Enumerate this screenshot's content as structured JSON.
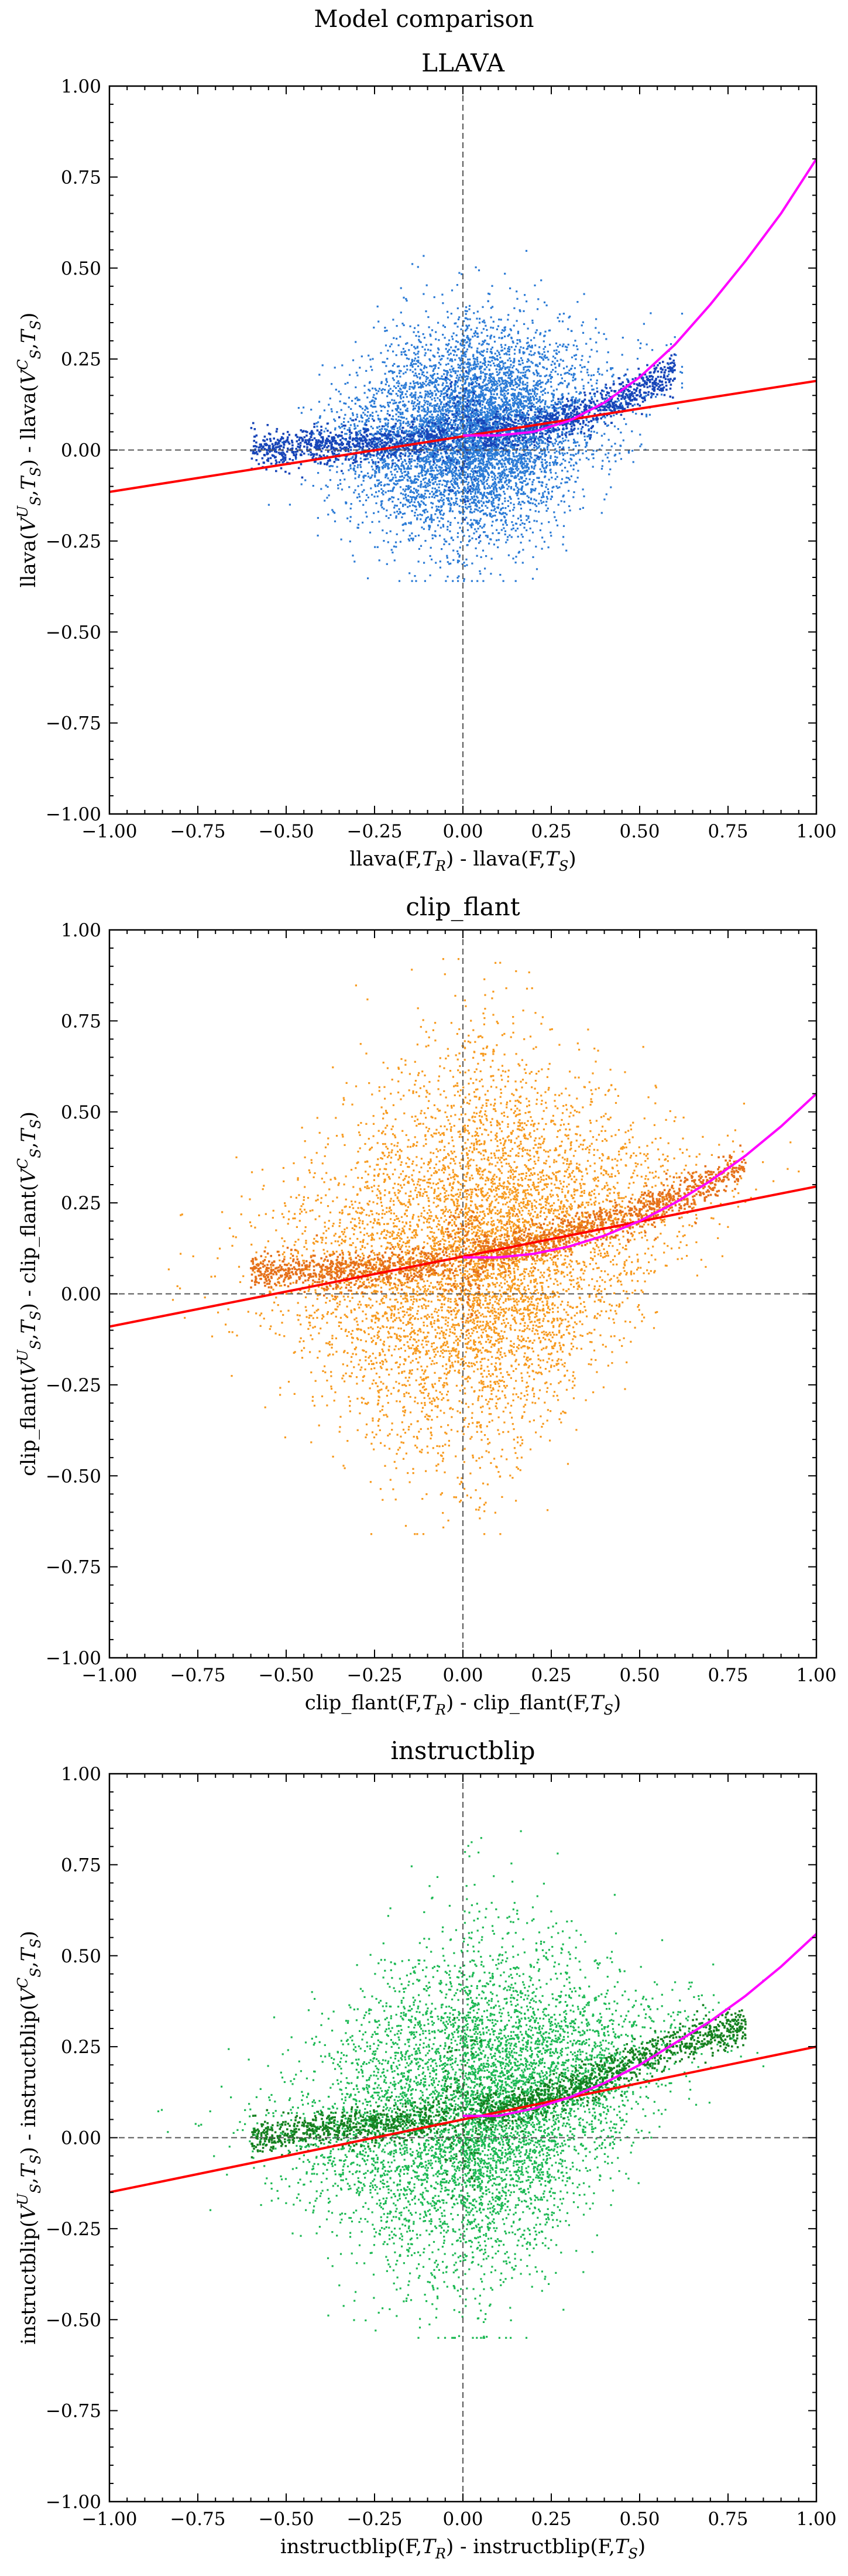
{
  "figure_title": "Model comparison",
  "chart_data": [
    {
      "type": "scatter",
      "title": "LLAVA",
      "xlabel": "llava(F,T_R) - llava(F,T_S)",
      "ylabel": "llava(V_S^U,T_S) - llava(V_S^C,T_S)",
      "xlim": [
        -1.0,
        1.0
      ],
      "ylim": [
        -1.0,
        1.0
      ],
      "xticks": [
        -1.0,
        -0.75,
        -0.5,
        -0.25,
        0.0,
        0.25,
        0.5,
        0.75,
        1.0
      ],
      "yticks": [
        -1.0,
        -0.75,
        -0.5,
        -0.25,
        0.0,
        0.25,
        0.5,
        0.75,
        1.0
      ],
      "xtick_labels": [
        "−1.00",
        "−0.75",
        "−0.50",
        "−0.25",
        "0.00",
        "0.25",
        "0.50",
        "0.75",
        "1.00"
      ],
      "ytick_labels": [
        "−1.00",
        "−0.75",
        "−0.50",
        "−0.25",
        "0.00",
        "0.25",
        "0.50",
        "0.75",
        "1.00"
      ],
      "colors": {
        "points": "#2b7bd6",
        "running_mean": "#1745b8",
        "linear_fit": "#ff0000",
        "poly_fit": "#ff00ff",
        "reference": "#555555"
      },
      "reference_lines": {
        "x": 0.0,
        "y": 0.0
      },
      "scatter_summary": {
        "x_range": [
          -0.6,
          0.62
        ],
        "y_range": [
          -0.36,
          0.62
        ],
        "x_spread": 0.2,
        "y_spread": 0.11
      },
      "running_mean": {
        "x": [
          -0.6,
          -0.4,
          -0.2,
          0.0,
          0.2,
          0.4,
          0.6
        ],
        "y": [
          0.0,
          0.01,
          0.02,
          0.04,
          0.06,
          0.12,
          0.22
        ]
      },
      "linear_fit": {
        "x": [
          -1.0,
          1.0
        ],
        "y": [
          -0.115,
          0.19
        ]
      },
      "poly_fit": {
        "x": [
          0.0,
          0.1,
          0.2,
          0.3,
          0.4,
          0.5,
          0.6,
          0.7,
          0.8,
          0.9,
          1.0
        ],
        "y": [
          0.04,
          0.04,
          0.05,
          0.08,
          0.13,
          0.2,
          0.29,
          0.4,
          0.52,
          0.65,
          0.8
        ]
      }
    },
    {
      "type": "scatter",
      "title": "clip_flant",
      "xlabel": "clip_flant(F,T_R) - clip_flant(F,T_S)",
      "ylabel": "clip_flant(V_S^U,T_S) - clip_flant(V_S^C,T_S)",
      "xlim": [
        -1.0,
        1.0
      ],
      "ylim": [
        -1.0,
        1.0
      ],
      "xticks": [
        -1.0,
        -0.75,
        -0.5,
        -0.25,
        0.0,
        0.25,
        0.5,
        0.75,
        1.0
      ],
      "yticks": [
        -1.0,
        -0.75,
        -0.5,
        -0.25,
        0.0,
        0.25,
        0.5,
        0.75,
        1.0
      ],
      "xtick_labels": [
        "−1.00",
        "−0.75",
        "−0.50",
        "−0.25",
        "0.00",
        "0.25",
        "0.50",
        "0.75",
        "1.00"
      ],
      "ytick_labels": [
        "−1.00",
        "−0.75",
        "−0.50",
        "−0.25",
        "0.00",
        "0.25",
        "0.50",
        "0.75",
        "1.00"
      ],
      "colors": {
        "points": "#f79a1e",
        "running_mean": "#e5701a",
        "linear_fit": "#ff0000",
        "poly_fit": "#ff00ff",
        "reference": "#555555"
      },
      "reference_lines": {
        "x": 0.0,
        "y": 0.0
      },
      "scatter_summary": {
        "x_range": [
          -0.95,
          0.95
        ],
        "y_range": [
          -0.66,
          0.92
        ],
        "x_spread": 0.3,
        "y_spread": 0.2
      },
      "running_mean": {
        "x": [
          -0.6,
          -0.4,
          -0.2,
          0.0,
          0.2,
          0.4,
          0.6,
          0.8
        ],
        "y": [
          0.06,
          0.06,
          0.07,
          0.1,
          0.14,
          0.19,
          0.26,
          0.35
        ]
      },
      "linear_fit": {
        "x": [
          -1.0,
          1.0
        ],
        "y": [
          -0.09,
          0.295
        ]
      },
      "poly_fit": {
        "x": [
          0.0,
          0.1,
          0.2,
          0.3,
          0.4,
          0.5,
          0.6,
          0.7,
          0.8,
          0.9,
          1.0
        ],
        "y": [
          0.1,
          0.1,
          0.11,
          0.13,
          0.16,
          0.2,
          0.25,
          0.31,
          0.38,
          0.46,
          0.55
        ]
      }
    },
    {
      "type": "scatter",
      "title": "instructblip",
      "xlabel": "instructblip(F,T_R) - instructblip(F,T_S)",
      "ylabel": "instructblip(V_S^U,T_S) - instructblip(V_S^C,T_S)",
      "xlim": [
        -1.0,
        1.0
      ],
      "ylim": [
        -1.0,
        1.0
      ],
      "xticks": [
        -1.0,
        -0.75,
        -0.5,
        -0.25,
        0.0,
        0.25,
        0.5,
        0.75,
        1.0
      ],
      "yticks": [
        -1.0,
        -0.75,
        -0.5,
        -0.25,
        0.0,
        0.25,
        0.5,
        0.75,
        1.0
      ],
      "xtick_labels": [
        "−1.00",
        "−0.75",
        "−0.50",
        "−0.25",
        "0.00",
        "0.25",
        "0.50",
        "0.75",
        "1.00"
      ],
      "ytick_labels": [
        "−1.00",
        "−0.75",
        "−0.50",
        "−0.25",
        "0.00",
        "0.25",
        "0.50",
        "0.75",
        "1.00"
      ],
      "colors": {
        "points": "#1db954",
        "running_mean": "#15801f",
        "linear_fit": "#ff0000",
        "poly_fit": "#ff00ff",
        "reference": "#555555"
      },
      "reference_lines": {
        "x": 0.0,
        "y": 0.0
      },
      "scatter_summary": {
        "x_range": [
          -0.9,
          0.85
        ],
        "y_range": [
          -0.55,
          0.86
        ],
        "x_spread": 0.28,
        "y_spread": 0.17
      },
      "running_mean": {
        "x": [
          -0.6,
          -0.4,
          -0.2,
          0.0,
          0.2,
          0.4,
          0.6,
          0.8
        ],
        "y": [
          0.0,
          0.02,
          0.04,
          0.06,
          0.1,
          0.17,
          0.26,
          0.31
        ]
      },
      "linear_fit": {
        "x": [
          -1.0,
          1.0
        ],
        "y": [
          -0.15,
          0.25
        ]
      },
      "poly_fit": {
        "x": [
          0.0,
          0.1,
          0.2,
          0.3,
          0.4,
          0.5,
          0.6,
          0.7,
          0.8,
          0.9,
          1.0
        ],
        "y": [
          0.06,
          0.06,
          0.08,
          0.11,
          0.15,
          0.2,
          0.26,
          0.32,
          0.39,
          0.47,
          0.56
        ]
      }
    }
  ]
}
